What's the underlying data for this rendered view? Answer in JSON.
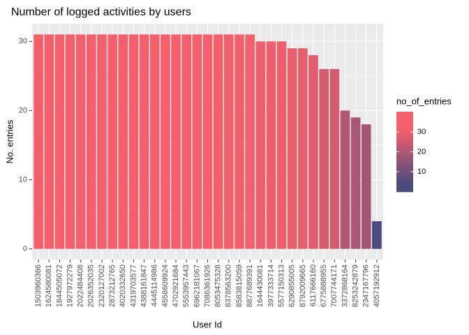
{
  "chart_data": {
    "type": "bar",
    "title": "Number of logged activities by users",
    "x_label": "User Id",
    "y_label": "No. entries",
    "categories": [
      "1503960366",
      "1624580081",
      "1844505072",
      "1927972279",
      "2022484408",
      "2026352035",
      "2320127002",
      "2873212765",
      "4020332650",
      "4319703577",
      "4388161847",
      "4445114986",
      "4558609924",
      "4702921684",
      "5553957443",
      "6962181067",
      "7086361926",
      "8053475328",
      "8378563200",
      "8583815059",
      "8877689391",
      "1644430081",
      "3977333714",
      "5577150313",
      "6290855005",
      "8792009665",
      "6117666160",
      "6775888955",
      "7007744171",
      "3372868164",
      "8253242879",
      "2347167796",
      "4057192912"
    ],
    "values": [
      31,
      31,
      31,
      31,
      31,
      31,
      31,
      31,
      31,
      31,
      31,
      31,
      31,
      31,
      31,
      31,
      31,
      31,
      31,
      31,
      31,
      30,
      30,
      30,
      29,
      29,
      28,
      26,
      26,
      20,
      19,
      18,
      4
    ],
    "ylim": [
      -1.55,
      32.55
    ],
    "yticks": [
      0,
      10,
      20,
      30
    ],
    "grid": true,
    "legend_title": "no_of_entries",
    "legend_lim": [
      4,
      31
    ],
    "legend_ticks": [
      10,
      20,
      30
    ],
    "color_low": "#4b4b7e",
    "color_high": "#f45f6c"
  }
}
